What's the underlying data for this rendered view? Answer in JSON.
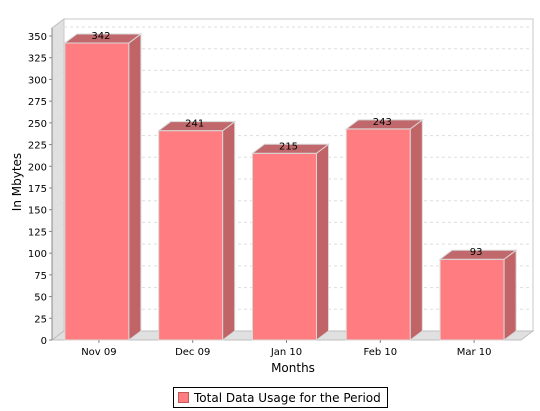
{
  "chart_data": {
    "type": "bar",
    "categories": [
      "Nov 09",
      "Dec 09",
      "Jan 10",
      "Feb 10",
      "Mar 10"
    ],
    "series": [
      {
        "name": "Total Data Usage for the Period",
        "values": [
          342,
          241,
          215,
          243,
          93
        ]
      }
    ],
    "data_labels": [
      "342",
      "241",
      "215",
      "243",
      "93"
    ],
    "xlabel": "Months",
    "ylabel": "In Mbytes",
    "ylim": [
      0,
      350
    ],
    "yticks": [
      0,
      25,
      50,
      75,
      100,
      125,
      150,
      175,
      200,
      225,
      250,
      275,
      300,
      325,
      350
    ],
    "grid": true,
    "legend_position": "bottom",
    "style": "3d",
    "colors": {
      "bar_front": "#ff7d80",
      "bar_side": "#c06468",
      "bar_top": "#c0686c",
      "wall": "#e0e0e0",
      "grid": "#dddddd"
    }
  }
}
